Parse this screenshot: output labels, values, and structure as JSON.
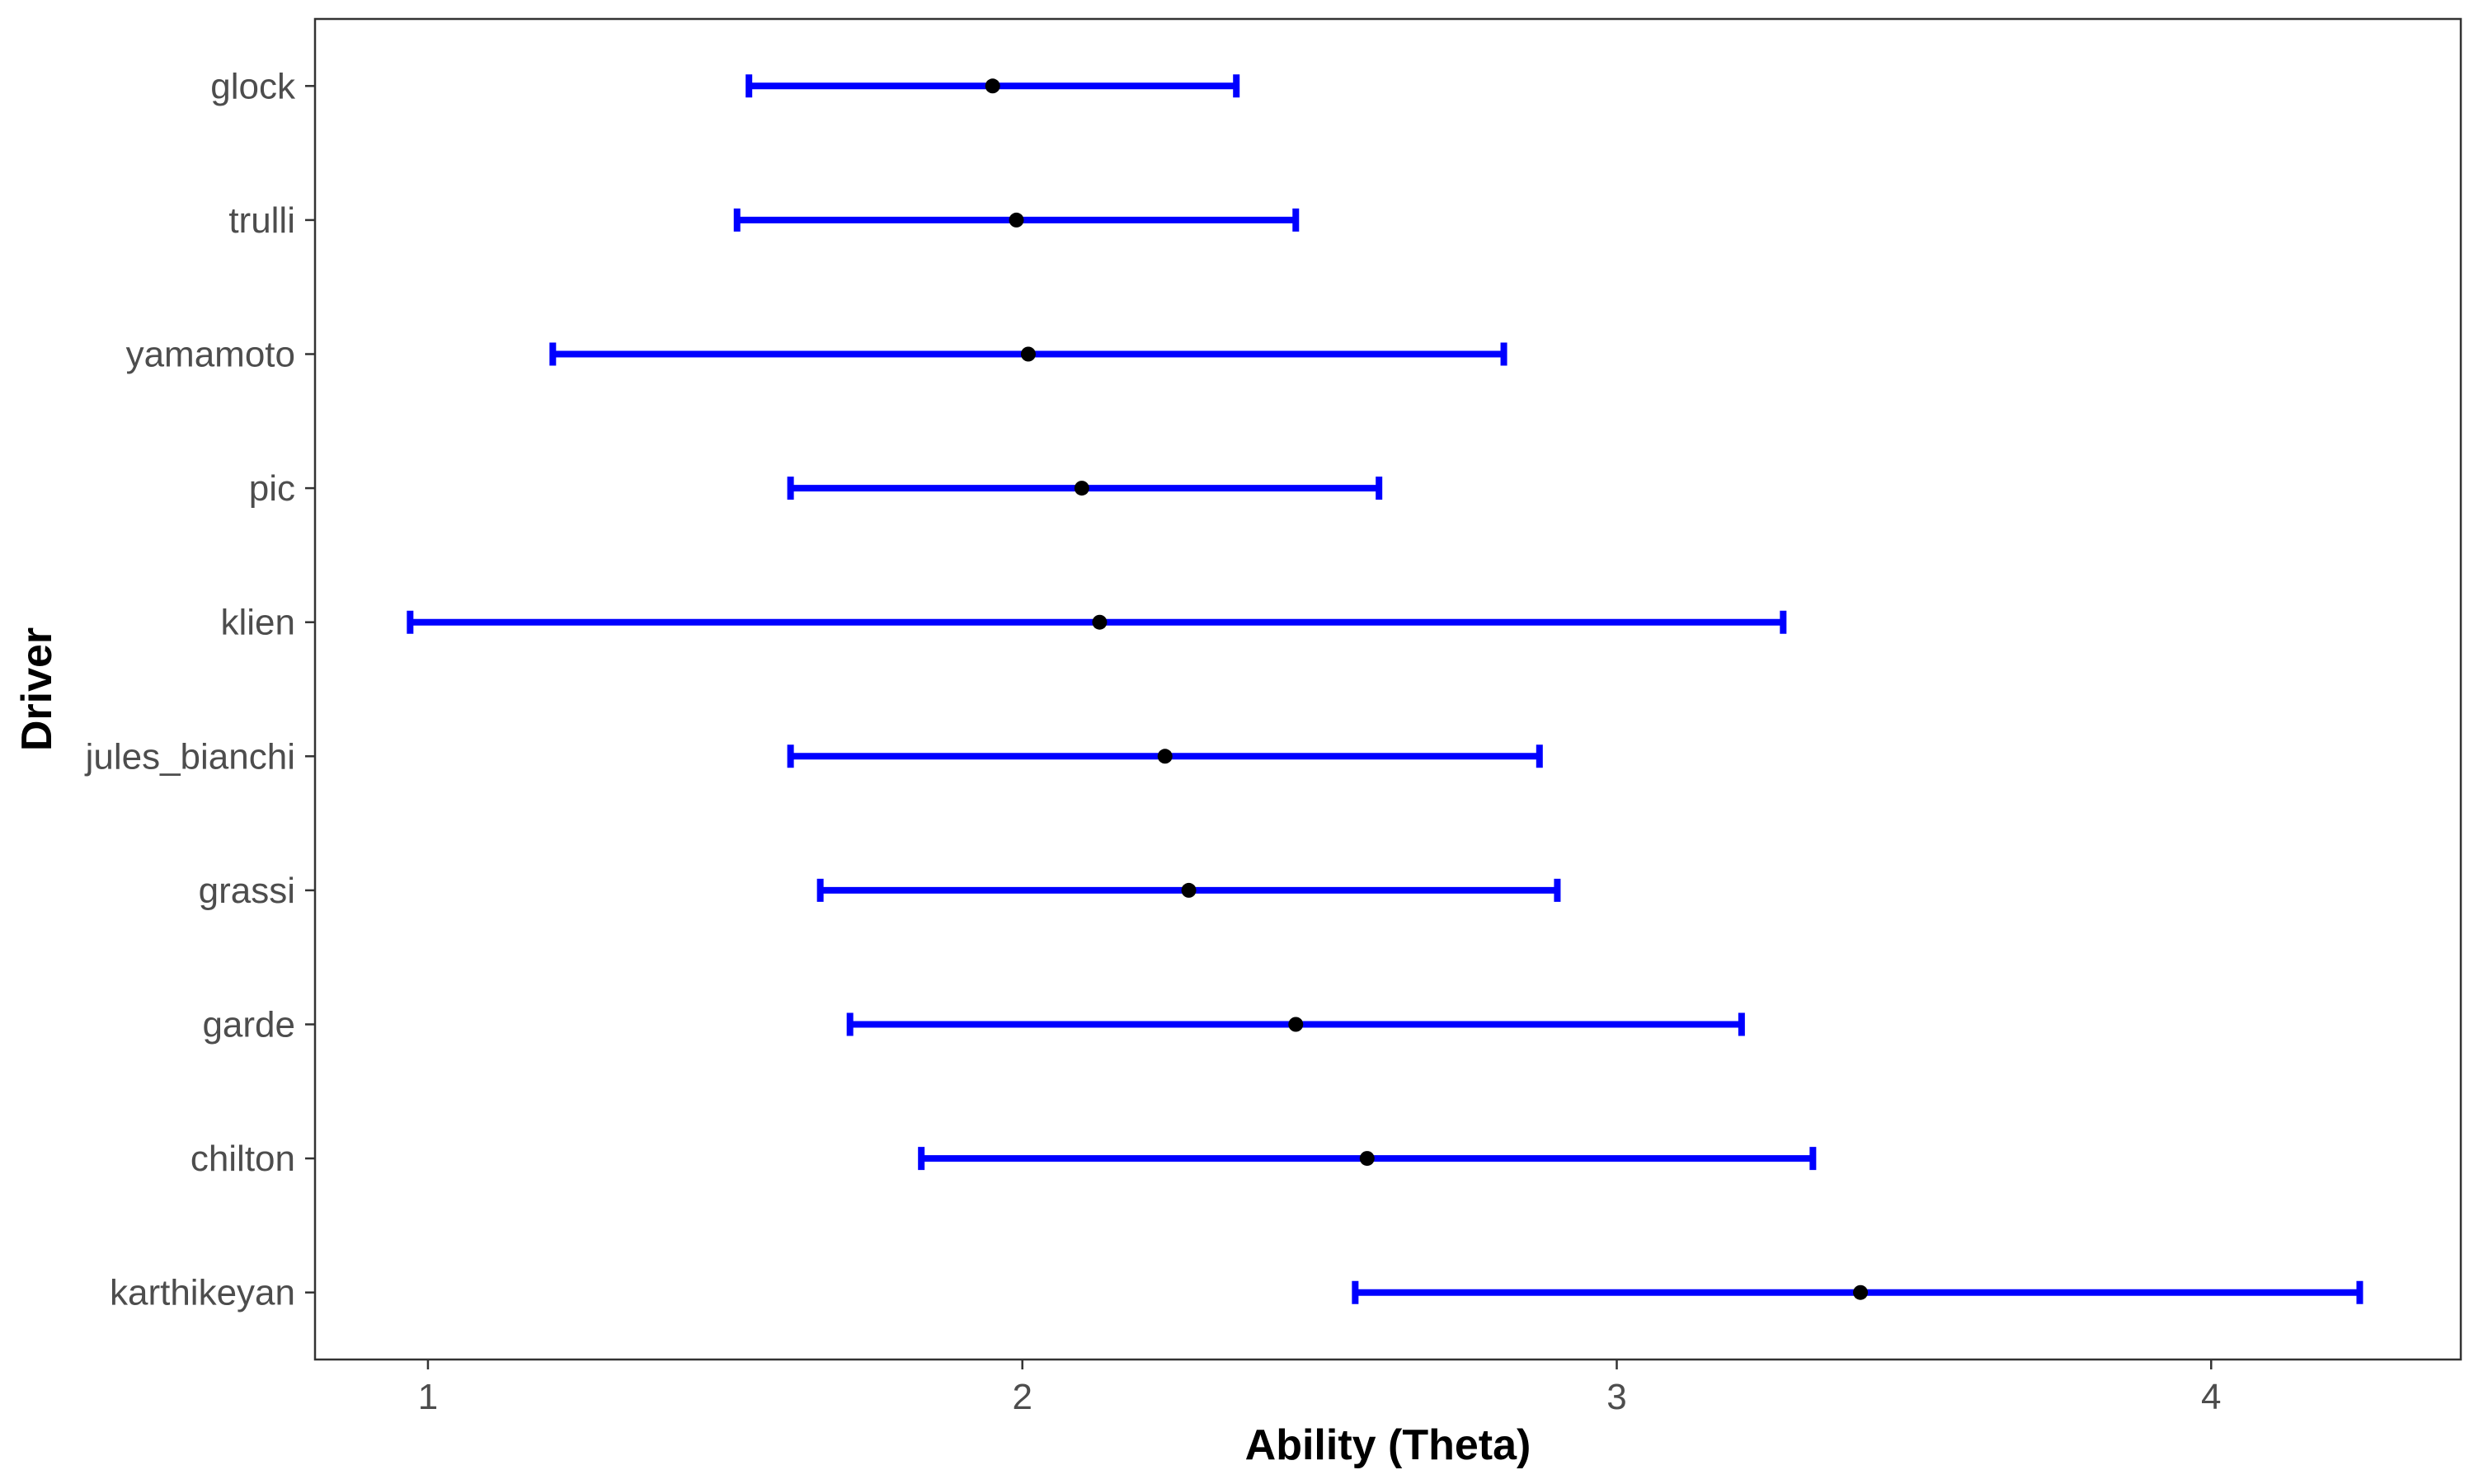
{
  "chart_data": {
    "type": "errorbar",
    "xlabel": "Ability (Theta)",
    "ylabel": "Driver",
    "xlim": [
      0.81,
      4.42
    ],
    "xticks": [
      1,
      2,
      3,
      4
    ],
    "grid": false,
    "colors": {
      "errorbar": "#0000ff",
      "point": "#000000"
    },
    "categories": [
      "glock",
      "trulli",
      "yamamoto",
      "pic",
      "klien",
      "jules_bianchi",
      "grassi",
      "garde",
      "chilton",
      "karthikeyan"
    ],
    "estimate": [
      1.95,
      1.99,
      2.01,
      2.1,
      2.13,
      2.24,
      2.28,
      2.46,
      2.58,
      3.41
    ],
    "lower": [
      1.54,
      1.52,
      1.21,
      1.61,
      0.97,
      1.61,
      1.66,
      1.71,
      1.83,
      2.56
    ],
    "upper": [
      2.36,
      2.46,
      2.81,
      2.6,
      3.28,
      2.87,
      2.9,
      3.21,
      3.33,
      4.25
    ]
  }
}
